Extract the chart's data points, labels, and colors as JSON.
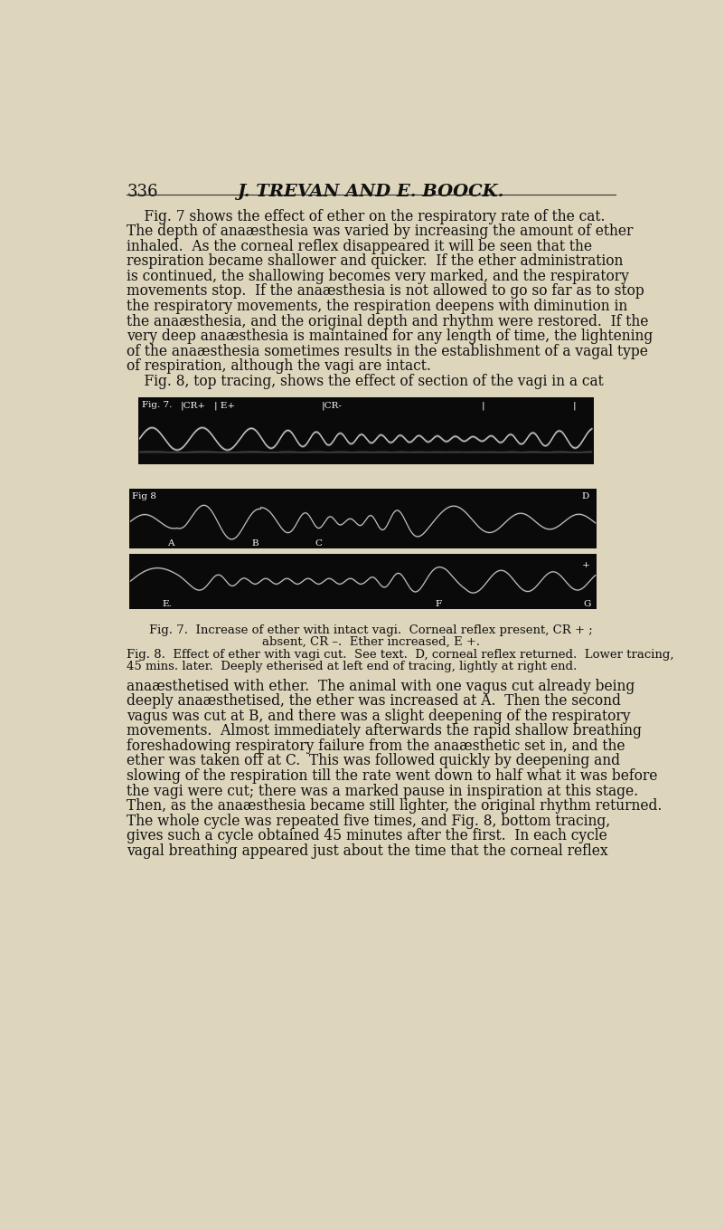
{
  "bg_color": "#ddd5bc",
  "page_number": "336",
  "header": "J. TREVAN AND E. BOOCK.",
  "body_text": [
    "    Fig. 7 shows the effect of ether on the respiratory rate of the cat.",
    "The depth of anaæsthesia was varied by increasing the amount of ether",
    "inhaled.  As the corneal reflex disappeared it will be seen that the",
    "respiration became shallower and quicker.  If the ether administration",
    "is continued, the shallowing becomes very marked, and the respiratory",
    "movements stop.  If the anaæsthesia is not allowed to go so far as to stop",
    "the respiratory movements, the respiration deepens with diminution in",
    "the anaæsthesia, and the original depth and rhythm were restored.  If the",
    "very deep anaæsthesia is maintained for any length of time, the lightening",
    "of the anaæsthesia sometimes results in the establishment of a vagal type",
    "of respiration, although the vagi are intact.",
    "    Fig. 8, top tracing, shows the effect of section of the vagi in a cat"
  ],
  "body_text2": [
    "anaæsthetised with ether.  The animal with one vagus cut already being",
    "deeply anaæsthetised, the ether was increased at A.  Then the second",
    "vagus was cut at B, and there was a slight deepening of the respiratory",
    "movements.  Almost immediately afterwards the rapid shallow breathing",
    "foreshadowing respiratory failure from the anaæsthetic set in, and the",
    "ether was taken off at C.  This was followed quickly by deepening and",
    "slowing of the respiration till the rate went down to half what it was before",
    "the vagi were cut; there was a marked pause in inspiration at this stage.",
    "Then, as the anaæsthesia became still lighter, the original rhythm returned.",
    "The whole cycle was repeated five times, and Fig. 8, bottom tracing,",
    "gives such a cycle obtained 45 minutes after the first.  In each cycle",
    "vagal breathing appeared just about the time that the corneal reflex"
  ],
  "caption1": "Fig. 7.  Increase of ether with intact vagi.  Corneal reflex present, CR + ;",
  "caption1b": "absent, CR –.  Ether increased, E +.",
  "caption2_start": "Fig. 8.  Effect of ether with vagi cut.  See text.  D, corneal reflex returned.  Lower tracing,",
  "caption2b": "45 mins. later.  Deeply etherised at left end of tracing, lightly at right end.",
  "tracing_bg": "#0a0a0a",
  "tracing_wave": "#aaaaaa"
}
